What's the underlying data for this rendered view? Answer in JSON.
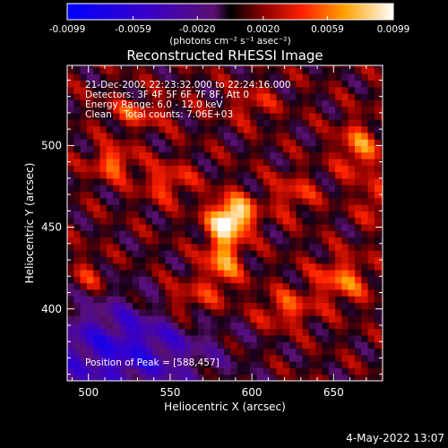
{
  "chart_data": {
    "type": "heatmap",
    "title": "Reconstructed RHESSI Image",
    "xlabel": "Heliocentric X (arcsec)",
    "ylabel": "Heliocentric Y (arcsec)",
    "xlim": [
      487,
      680
    ],
    "ylim": [
      356,
      549
    ],
    "xticks": [
      500,
      550,
      600,
      650
    ],
    "yticks": [
      400,
      450,
      500
    ],
    "colorbar": {
      "min": -0.0099,
      "max": 0.0099,
      "tick_values": [
        -0.0099,
        -0.0059,
        -0.002,
        0.002,
        0.0059,
        0.0099
      ],
      "tick_labels": [
        "-0.0099",
        "-0.0059",
        "-0.0020",
        "0.0020",
        "0.0059",
        "0.0099"
      ],
      "label": "(photons cm⁻² s⁻¹ asec⁻²)"
    },
    "annotations": [
      "21-Dec-2002 22:23:32.000 to 22:24:16.000",
      "Detectors: 3F 4F 5F 6F 7F 8F, Att 0",
      "Energy Range: 6.0 - 12.0 keV",
      "Clean    Total counts: 7.06E+03"
    ],
    "peak_label": "Position of Peak = [588,457]",
    "peak": [
      588,
      457
    ],
    "sources": [
      {
        "x": 588,
        "y": 457,
        "sx": 9,
        "sy": 8,
        "amp": 0.0098
      },
      {
        "x": 582,
        "y": 432,
        "sx": 8,
        "sy": 14,
        "amp": 0.0062
      },
      {
        "x": 515,
        "y": 490,
        "sx": 9,
        "sy": 7,
        "amp": 0.0052
      },
      {
        "x": 548,
        "y": 478,
        "sx": 11,
        "sy": 8,
        "amp": 0.004
      },
      {
        "x": 665,
        "y": 498,
        "sx": 9,
        "sy": 12,
        "amp": 0.005
      },
      {
        "x": 655,
        "y": 418,
        "sx": 12,
        "sy": 10,
        "amp": 0.0048
      },
      {
        "x": 620,
        "y": 400,
        "sx": 12,
        "sy": 8,
        "amp": 0.0042
      },
      {
        "x": 560,
        "y": 405,
        "sx": 13,
        "sy": 9,
        "amp": 0.004
      },
      {
        "x": 500,
        "y": 420,
        "sx": 8,
        "sy": 9,
        "amp": 0.003
      },
      {
        "x": 530,
        "y": 520,
        "sx": 14,
        "sy": 6,
        "amp": 0.0035
      },
      {
        "x": 600,
        "y": 525,
        "sx": 10,
        "sy": 7,
        "amp": 0.003
      },
      {
        "x": 625,
        "y": 470,
        "sx": 10,
        "sy": 9,
        "amp": 0.0034
      },
      {
        "x": 675,
        "y": 465,
        "sx": 6,
        "sy": 8,
        "amp": 0.004
      }
    ],
    "background_pattern": {
      "amp": 0.0028,
      "dark_region": {
        "x": 520,
        "y": 375,
        "amp": -0.0065,
        "sx": 38,
        "sy": 22
      }
    }
  },
  "footer": {
    "timestamp": "4-May-2022 13:07"
  }
}
